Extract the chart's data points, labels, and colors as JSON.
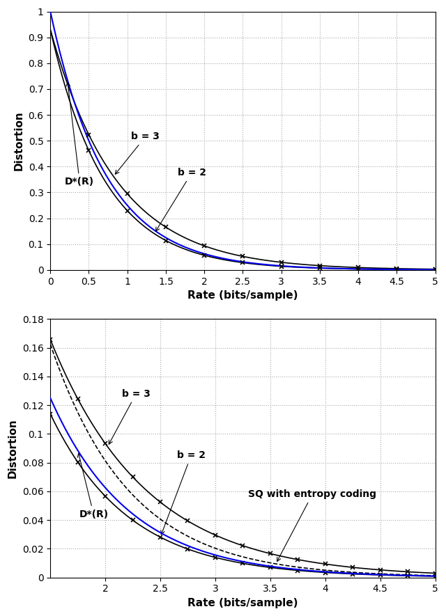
{
  "top_plot": {
    "xlim": [
      0,
      5
    ],
    "ylim": [
      0,
      1.0
    ],
    "xlabel": "Rate (bits/sample)",
    "ylabel": "Distortion",
    "yticks": [
      0,
      0.1,
      0.2,
      0.3,
      0.4,
      0.5,
      0.6,
      0.7,
      0.8,
      0.9,
      1.0
    ],
    "xticks": [
      0,
      0.5,
      1,
      1.5,
      2,
      2.5,
      3,
      3.5,
      4,
      4.5,
      5
    ]
  },
  "bottom_plot": {
    "xlim": [
      1.5,
      5
    ],
    "ylim": [
      0,
      0.18
    ],
    "xlabel": "Rate (bits/sample)",
    "ylabel": "Distortion",
    "yticks": [
      0,
      0.02,
      0.04,
      0.06,
      0.08,
      0.1,
      0.12,
      0.14,
      0.16,
      0.18
    ],
    "xticks": [
      2,
      2.5,
      3,
      3.5,
      4,
      4.5,
      5
    ]
  },
  "dstar_color": "#0000EE",
  "b3_color": "#000000",
  "b2_color": "#000000",
  "sq_color": "#000000",
  "grid_color": "#AAAAAA",
  "background_color": "#FFFFFF"
}
